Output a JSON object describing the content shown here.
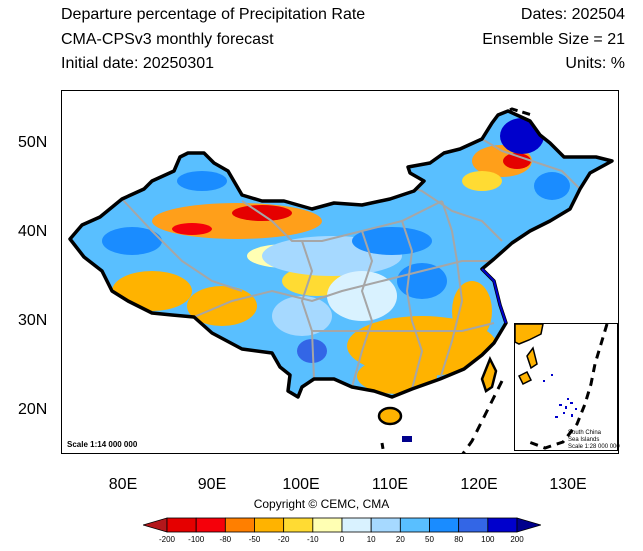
{
  "header": {
    "title_line1": "Departure percentage of Precipitation Rate",
    "title_line2": "CMA-CPSv3 monthly forecast",
    "title_line3": "Initial date: 20250301",
    "dates": "Dates: 202504",
    "ensemble": "Ensemble Size = 21",
    "units": "Units: %"
  },
  "map": {
    "lat_labels": [
      "50N",
      "40N",
      "30N",
      "20N"
    ],
    "lon_labels": [
      "80E",
      "90E",
      "100E",
      "110E",
      "120E",
      "130E"
    ],
    "scale_main": "Scale 1:14 000 000",
    "inset_title_line1": "South China",
    "inset_title_line2": "Sea Islands",
    "inset_scale": "Scale 1:28 000 000",
    "copyright": "Copyright © CEMC, CMA"
  },
  "legend": {
    "labels": [
      "-200",
      "-100",
      "-80",
      "-50",
      "-20",
      "-10",
      "0",
      "10",
      "20",
      "50",
      "80",
      "100",
      "200"
    ],
    "colors": [
      "#b3171b",
      "#e50000",
      "#f5000a",
      "#ff7f00",
      "#ffb300",
      "#ffdb33",
      "#ffffb3",
      "#d9f2ff",
      "#a6d9ff",
      "#59bfff",
      "#1a8cff",
      "#3366e6",
      "#0000cc",
      "#00008c"
    ]
  }
}
